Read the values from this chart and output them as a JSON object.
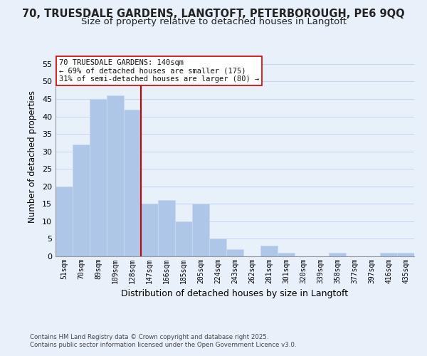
{
  "title": "70, TRUESDALE GARDENS, LANGTOFT, PETERBOROUGH, PE6 9QQ",
  "subtitle": "Size of property relative to detached houses in Langtoft",
  "xlabel": "Distribution of detached houses by size in Langtoft",
  "ylabel": "Number of detached properties",
  "bins": [
    "51sqm",
    "70sqm",
    "89sqm",
    "109sqm",
    "128sqm",
    "147sqm",
    "166sqm",
    "185sqm",
    "205sqm",
    "224sqm",
    "243sqm",
    "262sqm",
    "281sqm",
    "301sqm",
    "320sqm",
    "339sqm",
    "358sqm",
    "377sqm",
    "397sqm",
    "416sqm",
    "435sqm"
  ],
  "counts": [
    20,
    32,
    45,
    46,
    42,
    15,
    16,
    10,
    15,
    5,
    2,
    0,
    3,
    1,
    0,
    0,
    1,
    0,
    0,
    1,
    1
  ],
  "bar_color": "#aec6e8",
  "bar_edge_color": "#c8d8ee",
  "grid_color": "#c8d8f0",
  "vline_color": "#cc0000",
  "annotation_text": "70 TRUESDALE GARDENS: 140sqm\n← 69% of detached houses are smaller (175)\n31% of semi-detached houses are larger (80) →",
  "annotation_box_color": "#ffffff",
  "annotation_box_edge": "#cc0000",
  "ylim": [
    0,
    57
  ],
  "yticks": [
    0,
    5,
    10,
    15,
    20,
    25,
    30,
    35,
    40,
    45,
    50,
    55
  ],
  "footer_line1": "Contains HM Land Registry data © Crown copyright and database right 2025.",
  "footer_line2": "Contains public sector information licensed under the Open Government Licence v3.0.",
  "bg_color": "#e8f0fa",
  "title_fontsize": 10.5,
  "subtitle_fontsize": 9.5
}
